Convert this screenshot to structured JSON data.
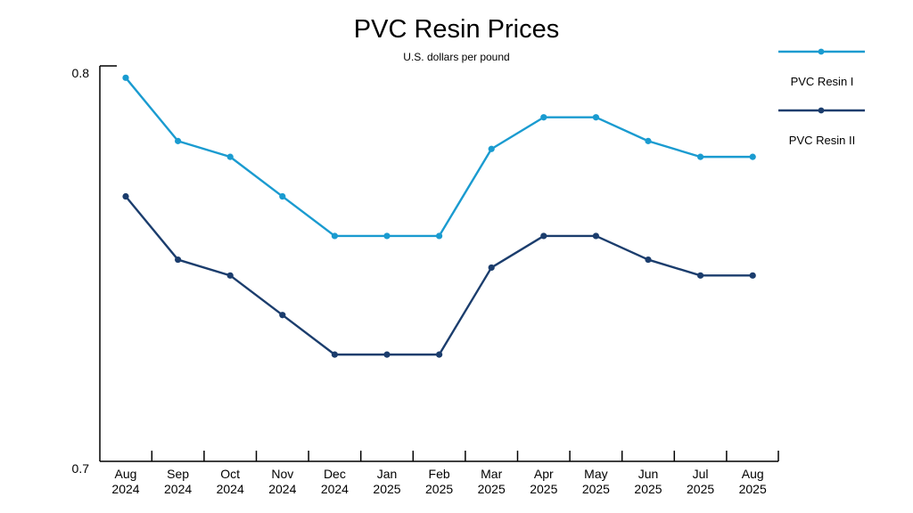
{
  "chart_data": {
    "type": "line",
    "title": "PVC Resin Prices",
    "subtitle": "U.S. dollars per pound",
    "xlabel": "",
    "ylabel": "",
    "categories": [
      [
        "Aug",
        "2024"
      ],
      [
        "Sep",
        "2024"
      ],
      [
        "Oct",
        "2024"
      ],
      [
        "Nov",
        "2024"
      ],
      [
        "Dec",
        "2024"
      ],
      [
        "Jan",
        "2025"
      ],
      [
        "Feb",
        "2025"
      ],
      [
        "Mar",
        "2025"
      ],
      [
        "Apr",
        "2025"
      ],
      [
        "May",
        "2025"
      ],
      [
        "Jun",
        "2025"
      ],
      [
        "Jul",
        "2025"
      ],
      [
        "Aug",
        "2025"
      ]
    ],
    "yticks": [
      "0.7",
      "0.8"
    ],
    "ylim": [
      0.7,
      0.8
    ],
    "grid": false,
    "legend_position": "right",
    "series": [
      {
        "name": "PVC Resin I",
        "color": "#1a9bd0",
        "values": [
          0.797,
          0.781,
          0.777,
          0.767,
          0.757,
          0.757,
          0.757,
          0.779,
          0.787,
          0.787,
          0.781,
          0.777,
          0.777
        ]
      },
      {
        "name": "PVC Resin II",
        "color": "#1b3d6d",
        "values": [
          0.767,
          0.751,
          0.747,
          0.737,
          0.727,
          0.727,
          0.727,
          0.749,
          0.757,
          0.757,
          0.751,
          0.747,
          0.747
        ]
      }
    ]
  }
}
